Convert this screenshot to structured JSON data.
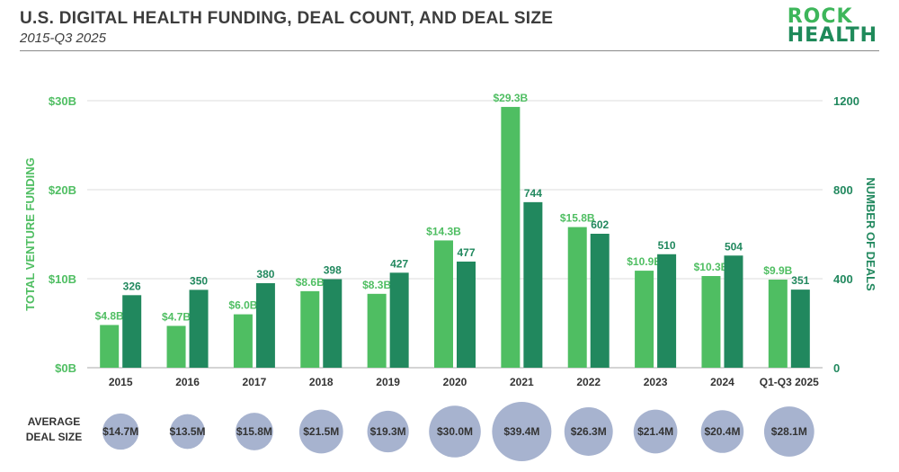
{
  "header": {
    "title": "U.S. DIGITAL HEALTH FUNDING, DEAL COUNT, AND DEAL SIZE",
    "subtitle": "2015-Q3 2025"
  },
  "logo": {
    "line1": "ROCK",
    "line2": "HEALTH",
    "icon": "rock-health-logo"
  },
  "colors": {
    "funding": "#4fbe62",
    "deals": "#21885e",
    "bubble": "#a7b3cf",
    "grid": "#dddddd",
    "text": "#333333"
  },
  "chart_data": {
    "type": "bar",
    "categories": [
      "2015",
      "2016",
      "2017",
      "2018",
      "2019",
      "2020",
      "2021",
      "2022",
      "2023",
      "2024",
      "Q1-Q3 2025"
    ],
    "series": [
      {
        "values": [
          4.8,
          4.7,
          6.0,
          8.6,
          8.3,
          14.3,
          29.3,
          15.8,
          10.9,
          10.3,
          9.9
        ],
        "labels": [
          "$4.8B",
          "$4.7B",
          "$6.0B",
          "$8.6B",
          "$8.3B",
          "$14.3B",
          "$29.3B",
          "$15.8B",
          "$10.9B",
          "$10.3B",
          "$9.9B"
        ],
        "axis": "left"
      },
      {
        "values": [
          326,
          350,
          380,
          398,
          427,
          477,
          744,
          602,
          510,
          504,
          351
        ],
        "labels": [
          "326",
          "350",
          "380",
          "398",
          "427",
          "477",
          "744",
          "602",
          "510",
          "504",
          "351"
        ],
        "axis": "right"
      }
    ],
    "left_axis": {
      "label": "TOTAL VENTURE FUNDING",
      "ticks": [
        "$0B",
        "$10B",
        "$20B",
        "$30B"
      ],
      "tick_values": [
        0,
        10,
        20,
        30
      ],
      "ylim": [
        0,
        30
      ]
    },
    "right_axis": {
      "label": "NUMBER OF DEALS",
      "ticks": [
        "0",
        "400",
        "800",
        "1200"
      ],
      "tick_values": [
        0,
        400,
        800,
        1200
      ],
      "ylim": [
        0,
        1200
      ]
    },
    "grid": true,
    "average_deal_size": {
      "label_line1": "AVERAGE",
      "label_line2": "DEAL SIZE",
      "values": [
        14.7,
        13.5,
        15.8,
        21.5,
        19.3,
        30.0,
        39.4,
        26.3,
        21.4,
        20.4,
        28.1
      ],
      "labels": [
        "$14.7M",
        "$13.5M",
        "$15.8M",
        "$21.5M",
        "$19.3M",
        "$30.0M",
        "$39.4M",
        "$26.3M",
        "$21.4M",
        "$20.4M",
        "$28.1M"
      ]
    }
  }
}
